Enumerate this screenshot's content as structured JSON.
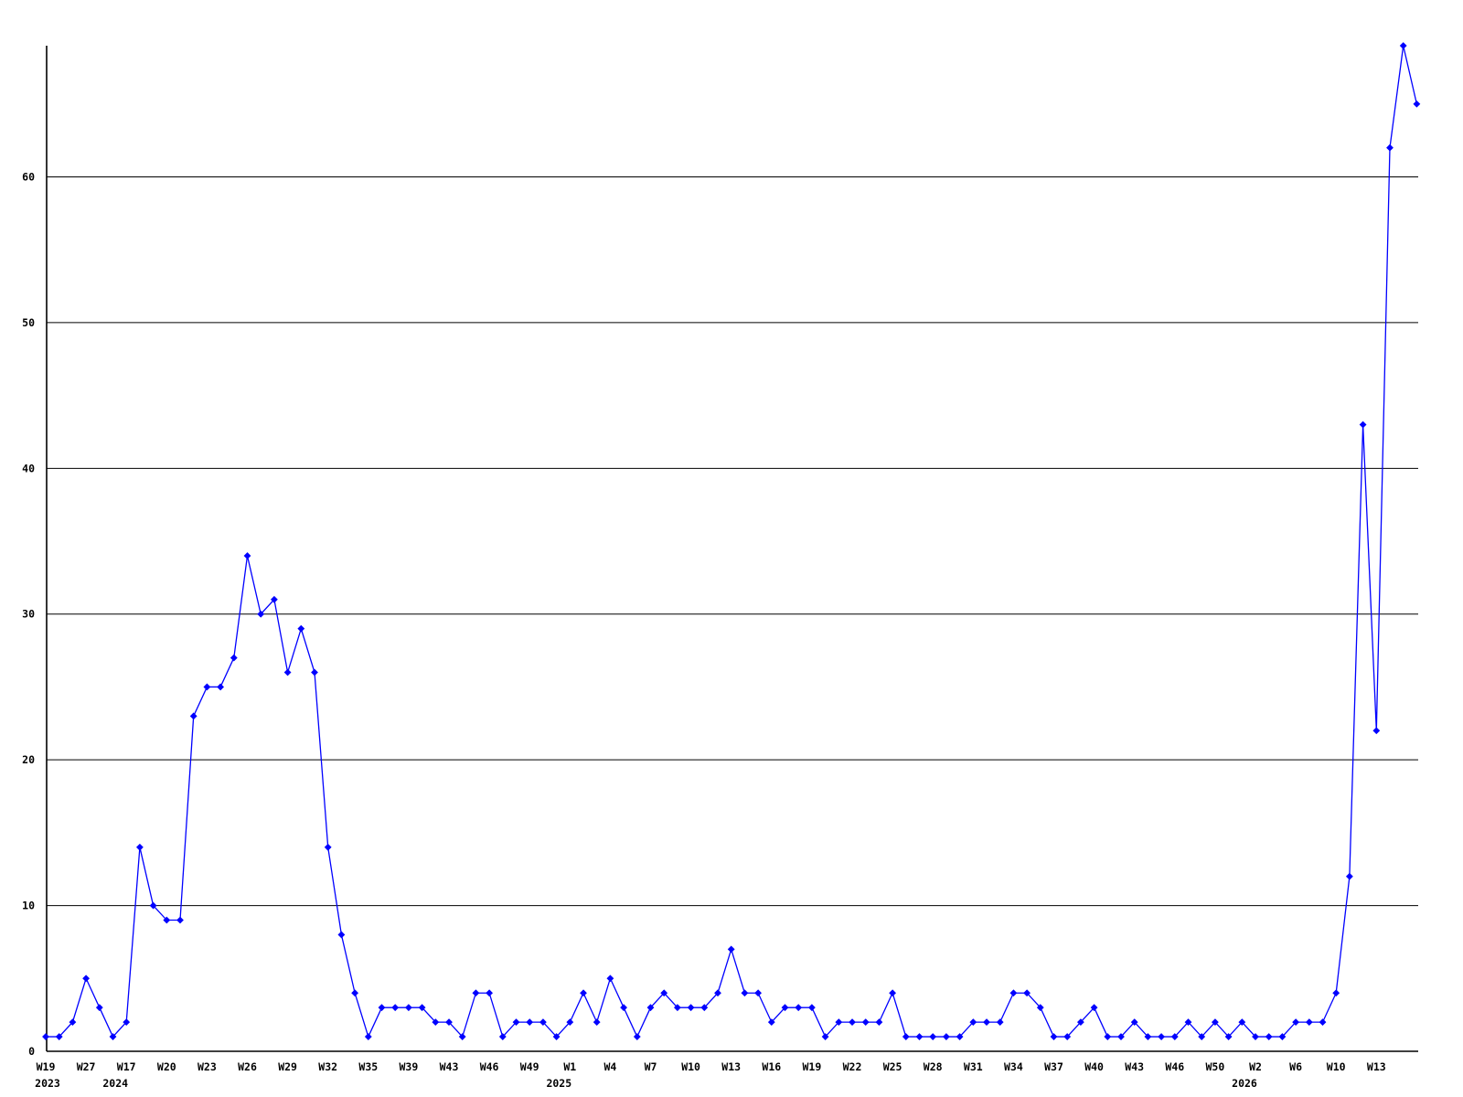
{
  "chart_data": {
    "type": "line",
    "title": "",
    "xlabel": "",
    "ylabel": "",
    "legend": "none",
    "grid": "horizontal",
    "marker": "diamond",
    "line_color": "#0000ff",
    "axis_color": "#000000",
    "grid_color": "#000000",
    "background_color": "#ffffff",
    "ylim": [
      0,
      69
    ],
    "y_ticks": [
      0,
      10,
      20,
      30,
      40,
      50,
      60
    ],
    "values": [
      1,
      1,
      2,
      5,
      3,
      1,
      2,
      14,
      10,
      9,
      9,
      23,
      25,
      25,
      27,
      34,
      30,
      31,
      26,
      29,
      26,
      14,
      8,
      4,
      1,
      3,
      3,
      3,
      3,
      2,
      2,
      1,
      4,
      4,
      1,
      2,
      2,
      2,
      1,
      2,
      4,
      2,
      5,
      3,
      1,
      3,
      4,
      3,
      3,
      3,
      4,
      7,
      4,
      4,
      2,
      3,
      3,
      3,
      1,
      2,
      2,
      2,
      2,
      4,
      1,
      1,
      1,
      1,
      1,
      2,
      2,
      2,
      4,
      4,
      3,
      1,
      1,
      2,
      3,
      1,
      1,
      2,
      1,
      1,
      1,
      2,
      1,
      2,
      1,
      2,
      1,
      1,
      1,
      2,
      2,
      2,
      4,
      12,
      43,
      22,
      62,
      69,
      65
    ],
    "x_tick_labels": [
      {
        "i": 0,
        "label": "W19",
        "year": "2023"
      },
      {
        "i": 3,
        "label": "W27"
      },
      {
        "i": 6,
        "label": "W17",
        "year": "2024"
      },
      {
        "i": 9,
        "label": "W20"
      },
      {
        "i": 12,
        "label": "W23"
      },
      {
        "i": 15,
        "label": "W26"
      },
      {
        "i": 18,
        "label": "W29"
      },
      {
        "i": 21,
        "label": "W32"
      },
      {
        "i": 24,
        "label": "W35"
      },
      {
        "i": 27,
        "label": "W39"
      },
      {
        "i": 30,
        "label": "W43"
      },
      {
        "i": 33,
        "label": "W46"
      },
      {
        "i": 36,
        "label": "W49"
      },
      {
        "i": 39,
        "label": "W1",
        "year": "2025"
      },
      {
        "i": 42,
        "label": "W4"
      },
      {
        "i": 45,
        "label": "W7"
      },
      {
        "i": 48,
        "label": "W10"
      },
      {
        "i": 51,
        "label": "W13"
      },
      {
        "i": 54,
        "label": "W16"
      },
      {
        "i": 57,
        "label": "W19"
      },
      {
        "i": 60,
        "label": "W22"
      },
      {
        "i": 63,
        "label": "W25"
      },
      {
        "i": 66,
        "label": "W28"
      },
      {
        "i": 69,
        "label": "W31"
      },
      {
        "i": 72,
        "label": "W34"
      },
      {
        "i": 75,
        "label": "W37"
      },
      {
        "i": 78,
        "label": "W40"
      },
      {
        "i": 81,
        "label": "W43"
      },
      {
        "i": 84,
        "label": "W46"
      },
      {
        "i": 87,
        "label": "W50"
      },
      {
        "i": 90,
        "label": "W2",
        "year": "2026"
      },
      {
        "i": 93,
        "label": "W6"
      },
      {
        "i": 96,
        "label": "W10"
      },
      {
        "i": 99,
        "label": "W13"
      }
    ]
  }
}
